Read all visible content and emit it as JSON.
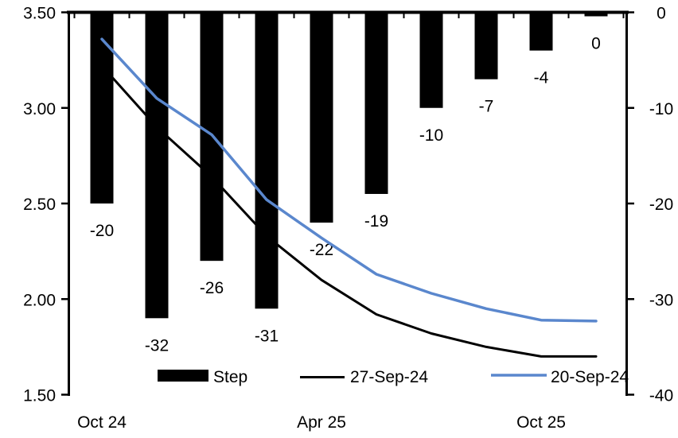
{
  "chart_data": {
    "type": "bar+line",
    "x_count": 10,
    "x_tick_labels": [
      {
        "label": "Oct 24",
        "index": 0
      },
      {
        "label": "Apr 25",
        "index": 4
      },
      {
        "label": "Oct 25",
        "index": 8
      }
    ],
    "left_axis": {
      "min": 1.5,
      "max": 3.5,
      "tick_labels": [
        "3.50",
        "3.00",
        "2.50",
        "2.00",
        "1.50"
      ],
      "tick_values": [
        3.5,
        3.0,
        2.5,
        2.0,
        1.5
      ],
      "grid": false
    },
    "right_axis": {
      "min": -40,
      "max": 0,
      "tick_labels": [
        "0",
        "-10",
        "-20",
        "-30",
        "-40"
      ],
      "tick_values": [
        0,
        -10,
        -20,
        -30,
        -40
      ],
      "grid": false
    },
    "bar_series": {
      "name": "Step",
      "axis": "right",
      "color": "#000000",
      "values": [
        -20,
        -32,
        -26,
        -31,
        -22,
        -19,
        -10,
        -7,
        -4,
        0
      ],
      "data_labels": [
        "-20",
        "-32",
        "-26",
        "-31",
        "-22",
        "-19",
        "-10",
        "-7",
        "-4",
        "0"
      ]
    },
    "line_series": [
      {
        "name": "27-Sep-24",
        "axis": "left",
        "color": "#000000",
        "stroke_width": 3,
        "values": [
          3.22,
          2.9,
          2.64,
          2.33,
          2.1,
          1.92,
          1.82,
          1.75,
          1.7,
          1.7
        ]
      },
      {
        "name": "20-Sep-24",
        "axis": "left",
        "color": "#5A87CD",
        "stroke_width": 3.5,
        "values": [
          3.36,
          3.05,
          2.86,
          2.52,
          2.32,
          2.13,
          2.03,
          1.95,
          1.89,
          1.885
        ]
      }
    ],
    "legend": [
      {
        "label": "Step",
        "swatch": "bar",
        "color": "#000000"
      },
      {
        "label": "27-Sep-24",
        "swatch": "line",
        "color": "#000000"
      },
      {
        "label": "20-Sep-24",
        "swatch": "line",
        "color": "#5A87CD"
      }
    ],
    "title": "",
    "legend_position": "bottom"
  }
}
